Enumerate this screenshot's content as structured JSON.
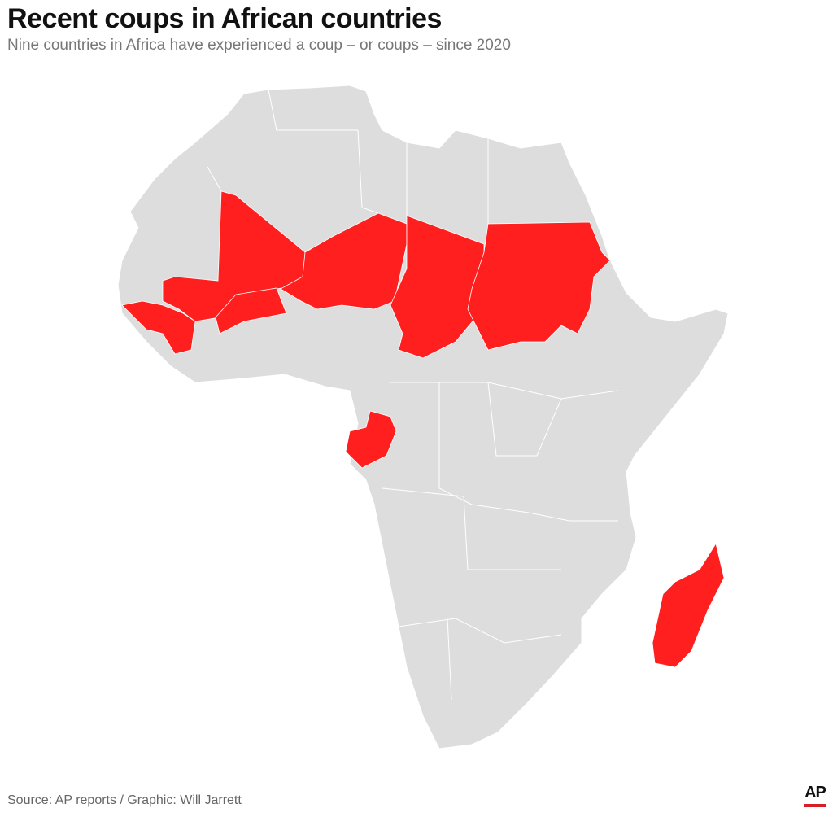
{
  "header": {
    "title": "Recent coups in African countries",
    "subtitle": "Nine countries in Africa have experienced a coup – or coups – since 2020"
  },
  "footer": {
    "source": "Source: AP reports / Graphic: Will Jarrett",
    "logo_text": "AP"
  },
  "colors": {
    "land": "#dddddd",
    "coup": "#ff1f1f",
    "border": "#ffffff",
    "logo_bar": "#d61f26"
  }
}
